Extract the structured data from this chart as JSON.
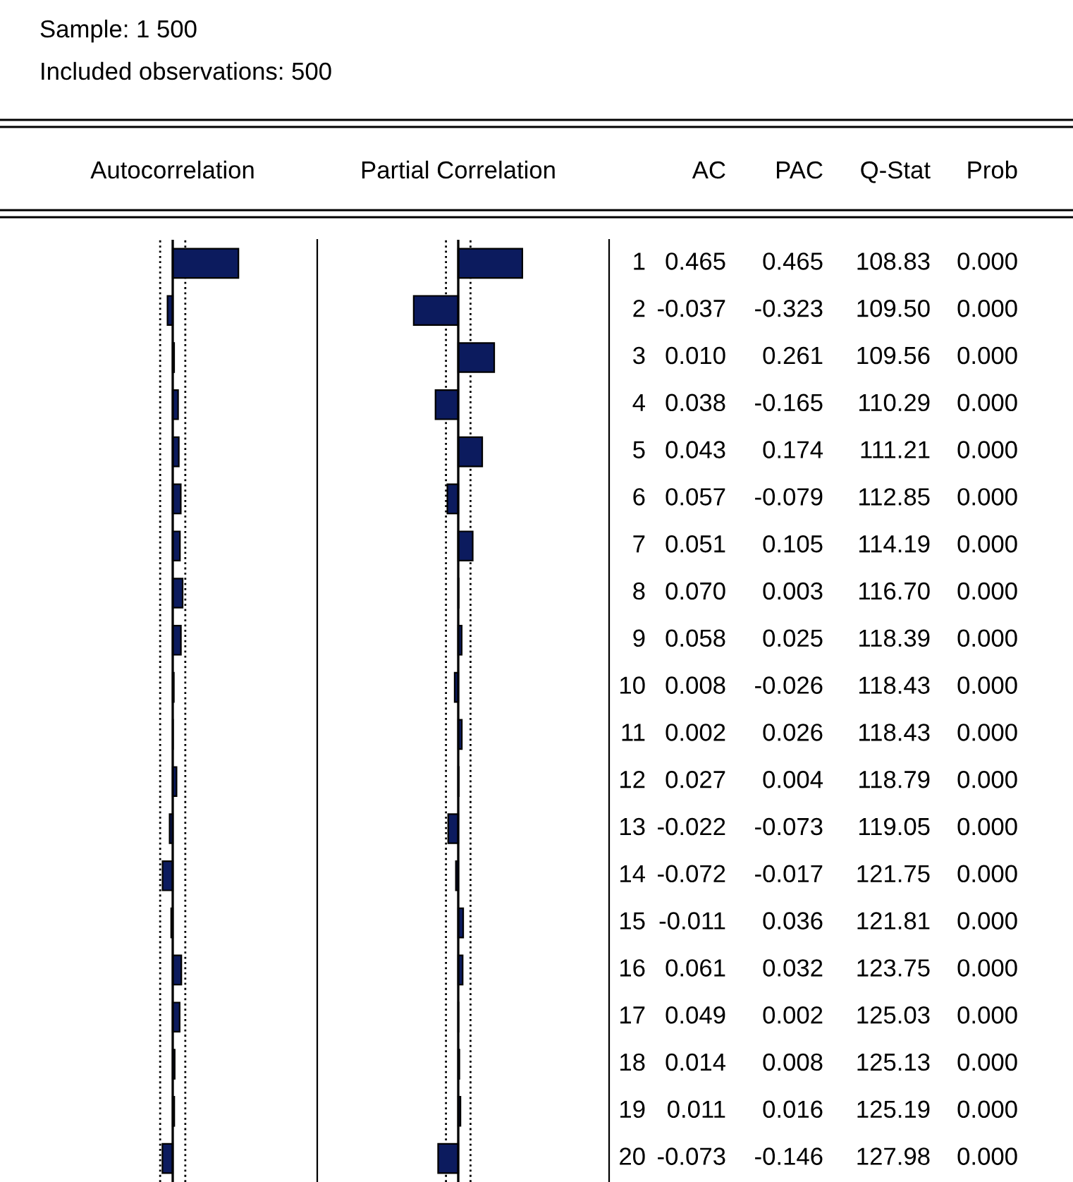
{
  "chart_data": [
    {
      "type": "bar",
      "orientation": "horizontal",
      "title": "Autocorrelation",
      "annotations": [
        "Sample: 1 500",
        "Included observations: 500"
      ],
      "categories": [
        "1",
        "2",
        "3",
        "4",
        "5",
        "6",
        "7",
        "8",
        "9",
        "10",
        "11",
        "12",
        "13",
        "14",
        "15",
        "16",
        "17",
        "18",
        "19",
        "20"
      ],
      "values": [
        0.465,
        -0.037,
        0.01,
        0.038,
        0.043,
        0.057,
        0.051,
        0.07,
        0.058,
        0.008,
        0.002,
        0.027,
        -0.022,
        -0.072,
        -0.011,
        0.061,
        0.049,
        0.014,
        0.011,
        -0.073
      ],
      "value_labels": [
        "0.465",
        "-0.037",
        "0.010",
        "0.038",
        "0.043",
        "0.057",
        "0.051",
        "0.070",
        "0.058",
        "0.008",
        "0.002",
        "0.027",
        "-0.022",
        "-0.072",
        "-0.011",
        "0.061",
        "0.049",
        "0.014",
        "0.011",
        "-0.073"
      ],
      "color": "#0c1b5e",
      "ref_lines": [
        {
          "axis": "x",
          "value": -0.089,
          "line_style": "dotted"
        },
        {
          "axis": "x",
          "value": 0.089,
          "line_style": "dotted"
        }
      ]
    },
    {
      "type": "bar",
      "orientation": "horizontal",
      "title": "Partial Correlation",
      "categories": [
        null,
        null,
        null,
        null,
        null,
        null,
        null,
        null,
        null,
        null,
        null,
        null,
        null,
        null,
        null,
        null,
        null,
        null,
        null,
        null
      ],
      "values": [
        0.465,
        -0.323,
        0.261,
        -0.165,
        0.174,
        -0.079,
        0.105,
        0.003,
        0.025,
        -0.026,
        0.026,
        0.004,
        -0.073,
        -0.017,
        0.036,
        0.032,
        0.002,
        0.008,
        0.016,
        -0.146
      ],
      "value_labels": [
        "0.465",
        "-0.323",
        "0.261",
        "-0.165",
        "0.174",
        "-0.079",
        "0.105",
        "0.003",
        "0.025",
        "-0.026",
        "0.026",
        "0.004",
        "-0.073",
        "-0.017",
        "0.036",
        "0.032",
        "0.002",
        "0.008",
        "0.016",
        "-0.146"
      ],
      "color": "#0c1b5e",
      "ref_lines": [
        {
          "axis": "x",
          "value": -0.089,
          "line_style": "dotted"
        },
        {
          "axis": "x",
          "value": 0.089,
          "line_style": "dotted"
        }
      ]
    },
    {
      "type": "other",
      "annotations": [
        "AC",
        "PAC",
        "Q-Stat",
        "Prob",
        "108.83",
        "0.000",
        "109.50",
        "0.000",
        "109.56",
        "0.000",
        "110.29",
        "0.000",
        "111.21",
        "0.000",
        "112.85",
        "0.000",
        "114.19",
        "0.000",
        "116.70",
        "0.000",
        "118.39",
        "0.000",
        "118.43",
        "0.000",
        "118.43",
        "0.000",
        "118.79",
        "0.000",
        "119.05",
        "0.000",
        "121.75",
        "0.000",
        "121.81",
        "0.000",
        "123.75",
        "0.000",
        "125.03",
        "0.000",
        "125.13",
        "0.000",
        "125.19",
        "0.000",
        "127.98",
        "0.000"
      ]
    }
  ]
}
